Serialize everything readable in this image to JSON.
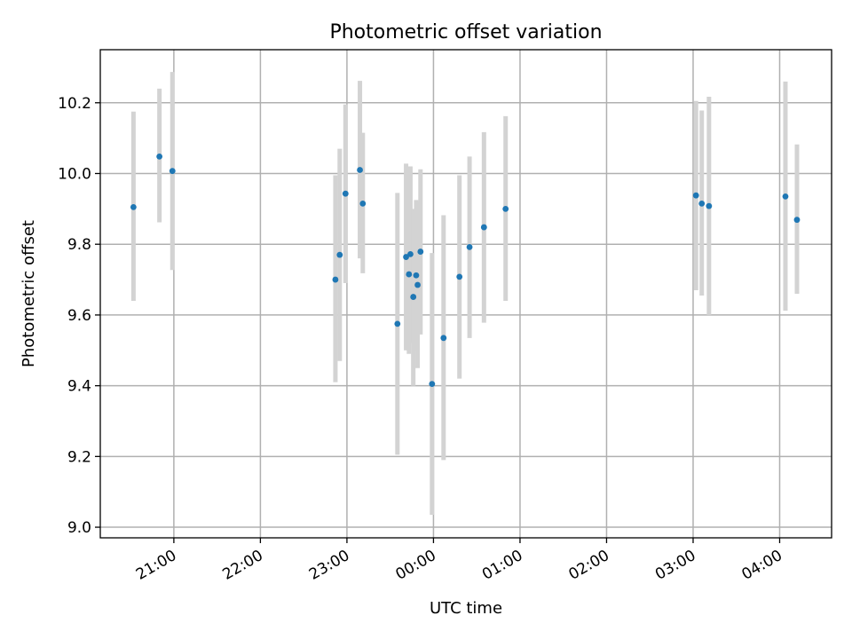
{
  "chart_data": {
    "type": "scatter",
    "title": "Photometric offset variation",
    "xlabel": "UTC time",
    "ylabel": "Photometric offset",
    "grid": true,
    "x_axis": {
      "kind": "time",
      "range": [
        "20:09",
        "04:36"
      ],
      "ticks": [
        "21:00",
        "22:00",
        "23:00",
        "00:00",
        "01:00",
        "02:00",
        "03:00",
        "04:00"
      ]
    },
    "y_axis": {
      "range": [
        8.97,
        10.35
      ],
      "ticks": [
        "9.0",
        "9.2",
        "9.4",
        "9.6",
        "9.8",
        "10.0",
        "10.2"
      ]
    },
    "colors": {
      "marker": "#1f77b4",
      "error_bar": "#d3d3d3",
      "grid": "#b0b0b0"
    },
    "series": [
      {
        "points": [
          {
            "time": "20:32",
            "y": 9.905,
            "ylow": 9.64,
            "yhigh": 10.175
          },
          {
            "time": "20:50",
            "y": 10.048,
            "ylow": 9.862,
            "yhigh": 10.24
          },
          {
            "time": "20:59",
            "y": 10.007,
            "ylow": 9.727,
            "yhigh": 10.287
          },
          {
            "time": "22:52",
            "y": 9.7,
            "ylow": 9.41,
            "yhigh": 9.995
          },
          {
            "time": "22:55",
            "y": 9.77,
            "ylow": 9.47,
            "yhigh": 10.07
          },
          {
            "time": "22:59",
            "y": 9.943,
            "ylow": 9.69,
            "yhigh": 10.195
          },
          {
            "time": "23:09",
            "y": 10.01,
            "ylow": 9.76,
            "yhigh": 10.262
          },
          {
            "time": "23:11",
            "y": 9.915,
            "ylow": 9.718,
            "yhigh": 10.115
          },
          {
            "time": "23:35",
            "y": 9.575,
            "ylow": 9.205,
            "yhigh": 9.945
          },
          {
            "time": "23:41",
            "y": 9.764,
            "ylow": 9.5,
            "yhigh": 10.028
          },
          {
            "time": "23:43",
            "y": 9.715,
            "ylow": 9.49,
            "yhigh": 9.94
          },
          {
            "time": "23:44",
            "y": 9.772,
            "ylow": 9.52,
            "yhigh": 10.02
          },
          {
            "time": "23:46",
            "y": 9.651,
            "ylow": 9.4,
            "yhigh": 9.9
          },
          {
            "time": "23:48",
            "y": 9.712,
            "ylow": 9.5,
            "yhigh": 9.925
          },
          {
            "time": "23:49",
            "y": 9.685,
            "ylow": 9.45,
            "yhigh": 9.92
          },
          {
            "time": "23:51",
            "y": 9.779,
            "ylow": 9.545,
            "yhigh": 10.012
          },
          {
            "time": "23:59",
            "y": 9.405,
            "ylow": 9.035,
            "yhigh": 9.775
          },
          {
            "time": "00:07",
            "y": 9.535,
            "ylow": 9.19,
            "yhigh": 9.882
          },
          {
            "time": "00:18",
            "y": 9.708,
            "ylow": 9.42,
            "yhigh": 9.995
          },
          {
            "time": "00:25",
            "y": 9.792,
            "ylow": 9.535,
            "yhigh": 10.048
          },
          {
            "time": "00:35",
            "y": 9.848,
            "ylow": 9.578,
            "yhigh": 10.117
          },
          {
            "time": "00:50",
            "y": 9.9,
            "ylow": 9.64,
            "yhigh": 10.162
          },
          {
            "time": "03:02",
            "y": 9.938,
            "ylow": 9.67,
            "yhigh": 10.205
          },
          {
            "time": "03:06",
            "y": 9.915,
            "ylow": 9.655,
            "yhigh": 10.178
          },
          {
            "time": "03:11",
            "y": 9.908,
            "ylow": 9.6,
            "yhigh": 10.217
          },
          {
            "time": "04:04",
            "y": 9.935,
            "ylow": 9.612,
            "yhigh": 10.26
          },
          {
            "time": "04:12",
            "y": 9.869,
            "ylow": 9.66,
            "yhigh": 10.082
          }
        ]
      }
    ]
  }
}
